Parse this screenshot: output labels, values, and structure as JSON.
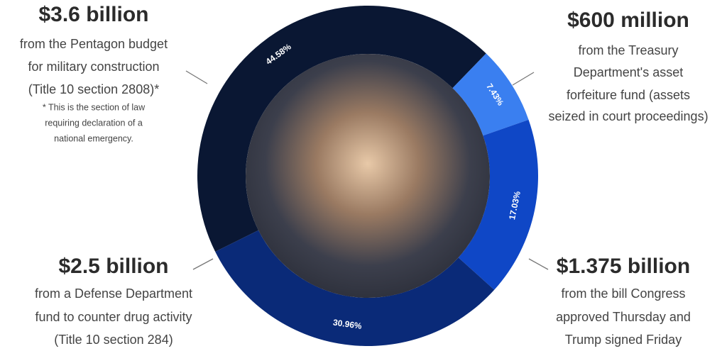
{
  "chart_data": {
    "type": "pie",
    "values": [
      44.58,
      7.43,
      17.03,
      30.96
    ],
    "value_labels": [
      "44.58%",
      "7.43%",
      "17.03%",
      "30.96%"
    ],
    "colors": [
      "#0a1733",
      "#3a7ff0",
      "#0f47c6",
      "#0a2a78"
    ],
    "annotations": [
      {
        "title": "$3.6 billion",
        "lines": [
          "from the Pentagon budget",
          "for military construction",
          "(Title 10 section 2808)*"
        ],
        "note": [
          "* This is the section of law",
          "requiring declaration of a",
          "national emergency."
        ]
      },
      {
        "title": "$600 million",
        "lines": [
          "from the Treasury",
          "Department's asset",
          "forfeiture fund (assets",
          "seized in court proceedings)"
        ]
      },
      {
        "title": "$1.375 billion",
        "lines": [
          "from the bill Congress",
          "approved Thursday and",
          "Trump signed Friday"
        ]
      },
      {
        "title": "$2.5 billion",
        "lines": [
          "from a Defense Department",
          "fund to counter drug activity",
          "(Title 10 section 284)"
        ]
      }
    ]
  }
}
